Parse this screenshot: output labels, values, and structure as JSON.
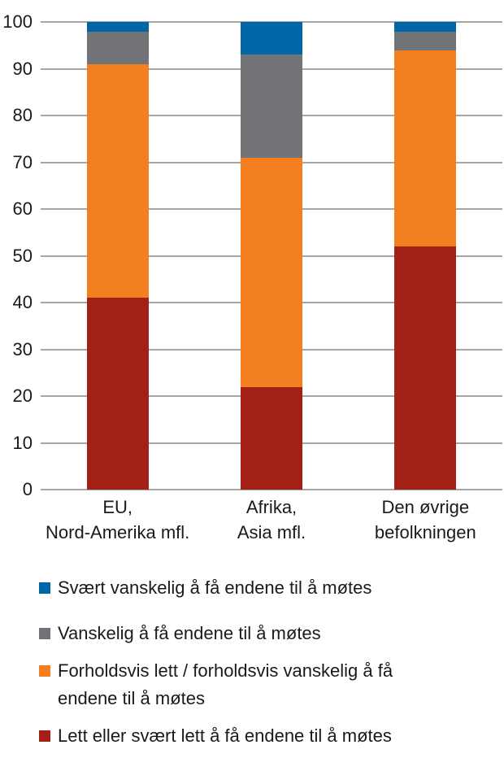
{
  "colors": {
    "blue": "#0066A5",
    "gray": "#717377",
    "orange": "#F47F20",
    "red": "#A32017",
    "gridline": "#A6A6A6",
    "text": "#1A1A1A",
    "background": "#FFFFFF"
  },
  "chart_data": {
    "type": "bar",
    "stacked": true,
    "stacked_to_100_percent": true,
    "title": "",
    "xlabel": "",
    "ylabel": "",
    "ylim": [
      0,
      100
    ],
    "yticks": [
      0,
      10,
      20,
      30,
      40,
      50,
      60,
      70,
      80,
      90,
      100
    ],
    "grid": true,
    "legend_position": "bottom",
    "categories": [
      "EU,\nNord-Amerika mfl.",
      "Afrika,\nAsia mfl.",
      "Den øvrige\nbefolkningen"
    ],
    "series": [
      {
        "name": "Svært vanskelig å få endene til å møtes",
        "color": "blue",
        "values": [
          2,
          7,
          2
        ]
      },
      {
        "name": "Vanskelig å få endene til å møtes",
        "color": "gray",
        "values": [
          7,
          22,
          4
        ]
      },
      {
        "name": "Forholdsvis lett / forholdsvis vanskelig å få endene til å møtes",
        "color": "orange",
        "values": [
          50,
          49,
          42
        ]
      },
      {
        "name": "Lett eller svært lett å få endene til å møtes",
        "color": "red",
        "values": [
          41,
          22,
          52
        ]
      }
    ],
    "stack_order_top_to_bottom": [
      "blue",
      "gray",
      "orange",
      "red"
    ]
  }
}
